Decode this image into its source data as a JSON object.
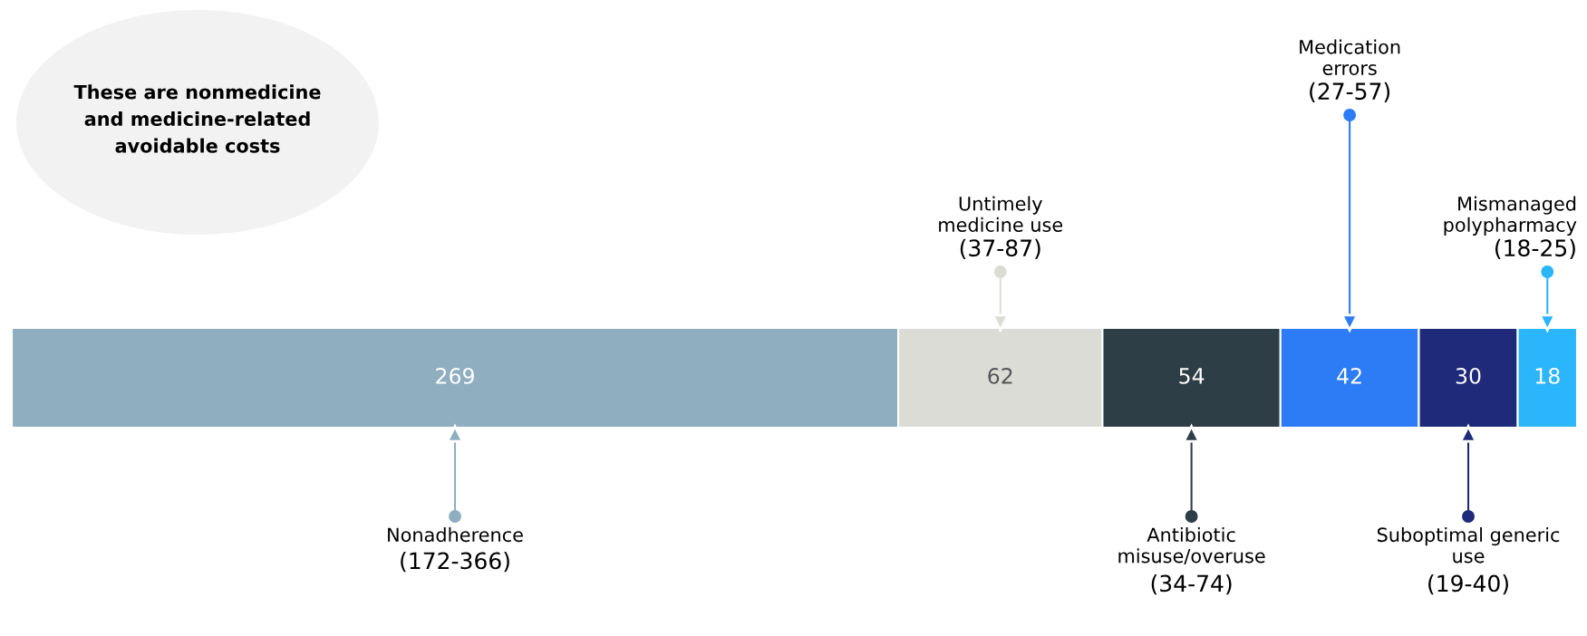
{
  "chart_data": {
    "type": "bar",
    "orientation": "horizontal",
    "stacked": true,
    "categories": [
      null
    ],
    "data_labels": true,
    "series": [
      {
        "color": "#8fafc0",
        "values": [
          269
        ]
      },
      {
        "color": "#dcdcd7",
        "values": [
          62
        ]
      },
      {
        "color": "#2e3e47",
        "values": [
          54
        ]
      },
      {
        "color": "#2b7cf5",
        "values": [
          42
        ]
      },
      {
        "color": "#1f2a7a",
        "values": [
          30
        ]
      },
      {
        "color": "#2bb5fa",
        "values": [
          18
        ]
      }
    ],
    "annotations": [
      "These are nonmedicine\nand medicine-related\navoidable costs",
      "Nonadherence\n(172-366)",
      "Untimely\nmedicine use\n(37-87)",
      "Antibiotic\nmisuse/overuse\n(34-74)",
      "Medication\nerrors\n(27-57)",
      "Suboptimal generic\nuse\n(19-40)",
      "Mismanaged\npolypharmacy\n(18-25)"
    ]
  }
}
